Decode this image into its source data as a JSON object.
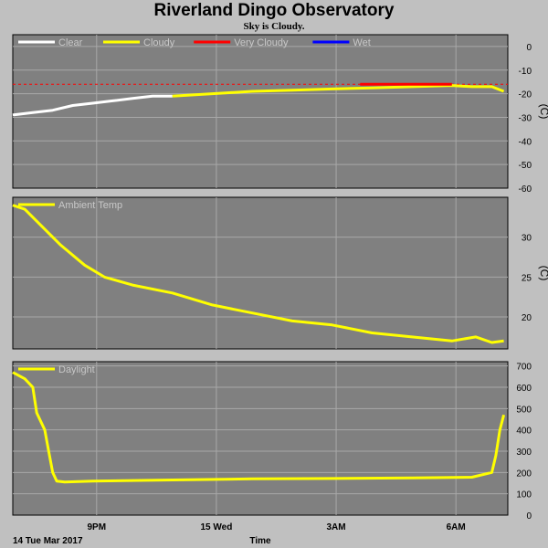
{
  "title": "Riverland Dingo Observatory",
  "subtitle": "Sky is Cloudy.",
  "chart_data": [
    {
      "type": "line",
      "panel": "sky",
      "yticks": [
        "0",
        "-10",
        "-20",
        "-30",
        "-40",
        "-50",
        "-60"
      ],
      "ylim": [
        -60,
        5
      ],
      "unit": "(C)",
      "legend": [
        {
          "label": "Clear",
          "color": "#ffffff"
        },
        {
          "label": "Cloudy",
          "color": "#ffff00"
        },
        {
          "label": "Very Cloudy",
          "color": "#ff0000"
        },
        {
          "label": "Wet",
          "color": "#0000ff"
        }
      ],
      "threshold": -16,
      "series": [
        {
          "name": "Clear",
          "color": "#ffffff",
          "x": [
            0,
            0.5,
            1,
            1.5,
            2,
            2.5,
            3,
            3.5,
            4
          ],
          "y": [
            -29,
            -28,
            -27,
            -25,
            -24,
            -23,
            -22,
            -21,
            -21
          ]
        },
        {
          "name": "Cloudy",
          "color": "#ffff00",
          "x": [
            4,
            5,
            6,
            7,
            8,
            9,
            10,
            11,
            11.5,
            12,
            12.3
          ],
          "y": [
            -21,
            -20,
            -19,
            -18.5,
            -18,
            -17.5,
            -17,
            -16.5,
            -17,
            -17,
            -19
          ]
        },
        {
          "name": "Very Cloudy",
          "color": "#ff0000",
          "x": [
            8.7,
            9.1,
            10.4,
            11.0
          ],
          "y": [
            -16,
            -16,
            -16,
            -16
          ]
        }
      ],
      "xlim": [
        0,
        12.4
      ]
    },
    {
      "type": "line",
      "panel": "ambient",
      "yticks": [
        "30",
        "25",
        "20"
      ],
      "ylim": [
        16,
        35
      ],
      "unit": "(C)",
      "legend": [
        {
          "label": "Ambient Temp",
          "color": "#ffff00"
        }
      ],
      "series": [
        {
          "name": "Ambient Temp",
          "color": "#ffff00",
          "x": [
            0,
            0.3,
            0.7,
            1.2,
            1.8,
            2.3,
            3.0,
            4.0,
            5.0,
            6.0,
            7.0,
            8.0,
            9.0,
            10.0,
            11.0,
            11.6,
            12.0,
            12.3
          ],
          "y": [
            34,
            33.5,
            31.5,
            29,
            26.5,
            25,
            24,
            23,
            21.5,
            20.5,
            19.5,
            19,
            18,
            17.5,
            17,
            17.5,
            16.8,
            17
          ]
        }
      ],
      "xlim": [
        0,
        12.4
      ]
    },
    {
      "type": "line",
      "panel": "daylight",
      "yticks": [
        "700",
        "600",
        "500",
        "400",
        "300",
        "200",
        "100",
        "0"
      ],
      "ylim": [
        0,
        720
      ],
      "legend": [
        {
          "label": "Daylight",
          "color": "#ffff00"
        }
      ],
      "series": [
        {
          "name": "Daylight",
          "color": "#ffff00",
          "x": [
            0,
            0.3,
            0.5,
            0.6,
            0.8,
            0.9,
            1.0,
            1.1,
            1.3,
            2,
            4,
            6,
            8,
            10,
            11.5,
            12.0,
            12.1,
            12.2,
            12.3
          ],
          "y": [
            670,
            640,
            600,
            480,
            400,
            300,
            200,
            160,
            155,
            160,
            165,
            170,
            172,
            175,
            178,
            200,
            280,
            400,
            470
          ]
        }
      ],
      "xlim": [
        0,
        12.4
      ]
    }
  ],
  "x_axis": {
    "ticks": [
      {
        "x": 2.1,
        "label": "9PM"
      },
      {
        "x": 5.1,
        "label": "15 Wed"
      },
      {
        "x": 8.1,
        "label": "3AM"
      },
      {
        "x": 11.1,
        "label": "6AM"
      }
    ],
    "start_label": "14 Tue Mar 2017",
    "label": "Time"
  }
}
